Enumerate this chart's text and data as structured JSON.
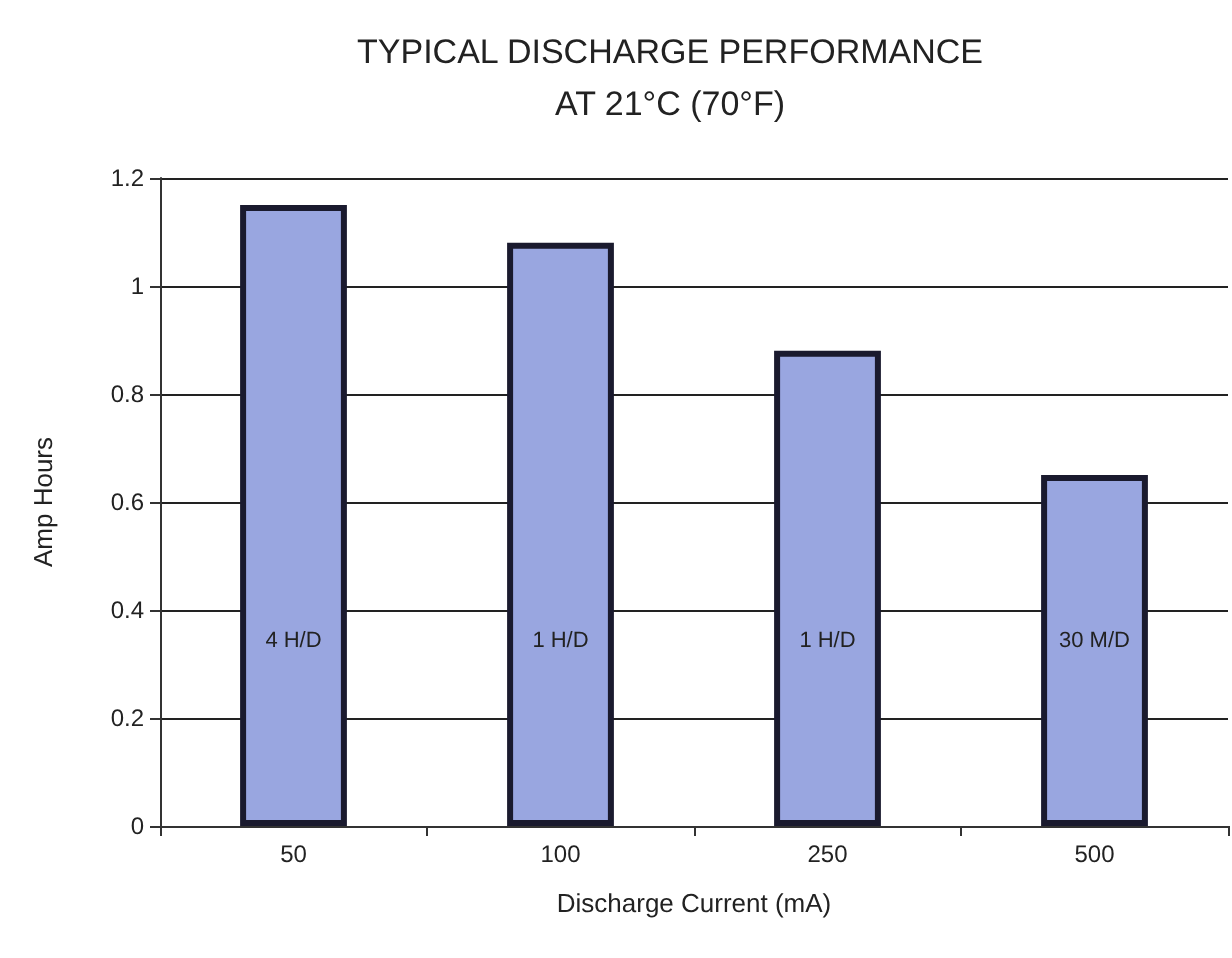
{
  "chart_data": {
    "type": "bar",
    "title": "TYPICAL DISCHARGE PERFORMANCE\nAT 21°C (70°F)",
    "xlabel": "Discharge Current (mA)",
    "ylabel": "Amp Hours",
    "categories": [
      "50",
      "100",
      "250",
      "500"
    ],
    "values": [
      1.15,
      1.08,
      0.88,
      0.65
    ],
    "color": "#99a6e0",
    "ylim": [
      0,
      1.2
    ],
    "yticks": [
      0,
      0.2,
      0.4,
      0.6,
      0.8,
      1,
      1.2
    ],
    "grid": "y",
    "annotations": [
      "4 H/D",
      "1 H/D",
      "1 H/D",
      "30 M/D"
    ]
  }
}
